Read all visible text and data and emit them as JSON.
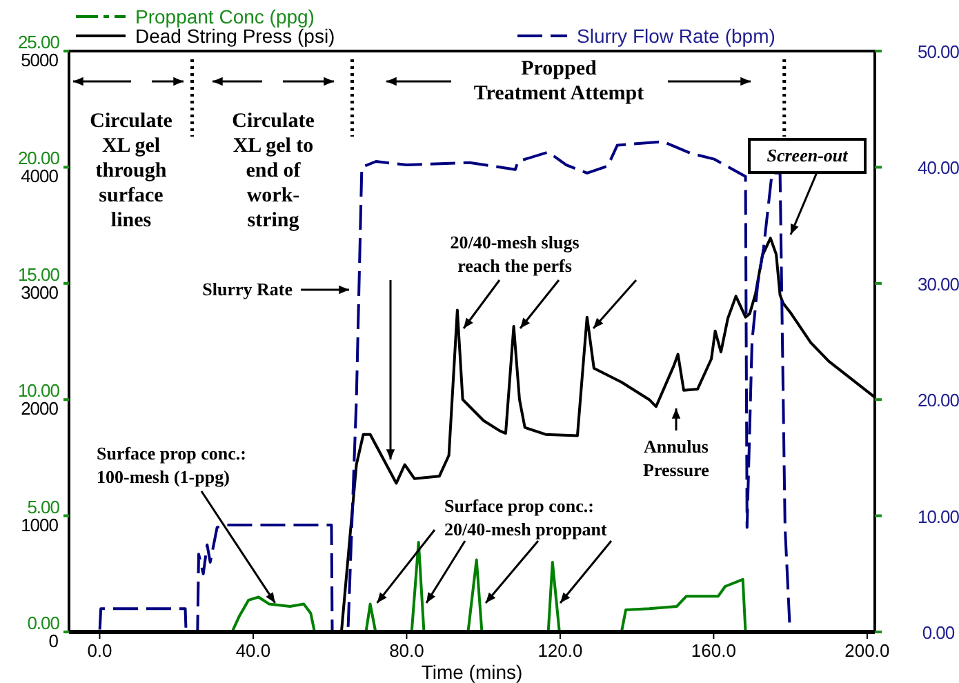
{
  "chart_data": {
    "type": "line",
    "xlabel": "Time (mins)",
    "legend": "top",
    "xlim": [
      -8,
      202
    ],
    "xticks": [
      {
        "value": 0,
        "label": "0.0"
      },
      {
        "value": 40,
        "label": "40.0"
      },
      {
        "value": 80,
        "label": "80.0"
      },
      {
        "value": 120,
        "label": "120.0"
      },
      {
        "value": 160,
        "label": "160.0"
      },
      {
        "value": 200,
        "label": "200.0"
      }
    ],
    "ylim": [
      0,
      5000
    ],
    "yticks": [
      0,
      1000,
      2000,
      3000,
      4000,
      5000
    ],
    "y2lim": [
      0,
      50
    ],
    "y2ticks": [
      {
        "value": 0,
        "label": "0.00"
      },
      {
        "value": 10,
        "label": "10.00"
      },
      {
        "value": 20,
        "label": "20.00"
      },
      {
        "value": 30,
        "label": "30.00"
      },
      {
        "value": 40,
        "label": "40.00"
      },
      {
        "value": 50,
        "label": "50.00"
      }
    ],
    "y3lim": [
      0,
      25
    ],
    "y3ticks": [
      {
        "value": 0,
        "label": "0.00"
      },
      {
        "value": 5,
        "label": "5.00"
      },
      {
        "value": 10,
        "label": "10.00"
      },
      {
        "value": 15,
        "label": "15.00"
      },
      {
        "value": 20,
        "label": "20.00"
      },
      {
        "value": 25,
        "label": "25.00"
      }
    ],
    "series": [
      {
        "name": "Proppant Conc (ppg)",
        "color": "#008000",
        "axis": "y3",
        "line_style": "solid",
        "x": [
          -8,
          34.5,
          36.3,
          38.8,
          41.4,
          44.2,
          49.6,
          53.2,
          55,
          56,
          69.4,
          70.5,
          71.9,
          81.3,
          83.1,
          84.5,
          96,
          98.2,
          99.6,
          116.9,
          118,
          119.8,
          136,
          137.1,
          143.2,
          150.4,
          152.9,
          161.2,
          163,
          167.6,
          168.3,
          202
        ],
        "values": [
          0,
          0,
          0.65,
          1.37,
          1.5,
          1.2,
          1.1,
          1.2,
          0.8,
          0,
          0,
          1.2,
          0,
          0,
          3.86,
          0,
          0,
          3.1,
          0,
          0,
          3,
          0,
          0,
          0.95,
          1,
          1.1,
          1.54,
          1.54,
          1.96,
          2.26,
          0,
          0
        ]
      },
      {
        "name": "Dead String Press (psi)",
        "color": "#000000",
        "axis": "y",
        "line_style": "solid",
        "x": [
          -8,
          63,
          66.9,
          68.7,
          70.5,
          77.3,
          79.5,
          82,
          88.5,
          91,
          93.2,
          94.6,
          100,
          104.3,
          105.8,
          107.9,
          109.4,
          110.8,
          116.2,
          124.5,
          127,
          128.8,
          136,
          143.2,
          145,
          149.6,
          150.7,
          152.2,
          155.8,
          159.4,
          160.4,
          161.9,
          163.7,
          165.8,
          168.3,
          169.4,
          170.9,
          172.7,
          174.8,
          176.3,
          177.3,
          178.1,
          180.2,
          185.3,
          190,
          202
        ],
        "values": [
          0,
          0,
          1440,
          1700,
          1700,
          1280,
          1440,
          1320,
          1340,
          1520,
          2770,
          2000,
          1820,
          1730,
          1710,
          2630,
          2000,
          1760,
          1700,
          1690,
          2710,
          2270,
          2150,
          2000,
          1940,
          2290,
          2390,
          2080,
          2090,
          2350,
          2590,
          2410,
          2700,
          2890,
          2710,
          2740,
          2910,
          3240,
          3390,
          3250,
          2900,
          2830,
          2740,
          2490,
          2330,
          2020
        ]
      },
      {
        "name": "Slurry Flow Rate (bpm)",
        "color": "#000080",
        "axis": "y2",
        "line_style": "dashed",
        "x": [
          -8,
          0,
          0.3,
          22.3,
          22.5,
          25.5,
          25.8,
          27,
          28,
          28.8,
          30.6,
          33,
          45,
          60.4,
          60.6,
          64.7,
          66.9,
          68.3,
          72,
          80,
          96.4,
          108.3,
          109,
          116.9,
          121.6,
          127,
          132.4,
          134.9,
          146.8,
          154,
          160.1,
          168.3,
          168.7,
          170,
          171.5,
          173,
          175.2,
          177.3,
          178.6,
          179.9,
          202
        ],
        "values": [
          0,
          0,
          2,
          2,
          0,
          0,
          6.7,
          5,
          7.5,
          6,
          9,
          9.2,
          9.2,
          9.2,
          0,
          0,
          20,
          40,
          40.5,
          40.2,
          40.4,
          39.8,
          40.5,
          41.3,
          40.2,
          39.5,
          40.1,
          41.9,
          42.2,
          41.2,
          40.7,
          39.2,
          9,
          25,
          30,
          33,
          39.5,
          39.5,
          9,
          0,
          0
        ]
      }
    ],
    "ref_lines": [
      {
        "axis": "x",
        "value": 24.1,
        "line_style": "dotted"
      },
      {
        "axis": "x",
        "value": 65.8,
        "line_style": "dotted"
      },
      {
        "axis": "x",
        "value": 178.4,
        "line_style": "dotted"
      }
    ],
    "annotations": [
      "Circulate\nXL gel\nthrough\nsurface\nlines",
      "Circulate\nXL gel to\nend of\nwork-\nstring",
      "Propped\nTreatment Attempt",
      "Screen-out",
      "20/40-mesh slugs\nreach the perfs",
      "Slurry Rate",
      "Annulus\nPressure",
      {
        "text": "Surface prop conc.:\n100-mesh (1-ppg)",
        "x": 45.7,
        "y": 250
      },
      {
        "text": "Surface prop conc.:\n20/40-mesh proppant",
        "x": 72.3,
        "y": 250
      }
    ]
  }
}
